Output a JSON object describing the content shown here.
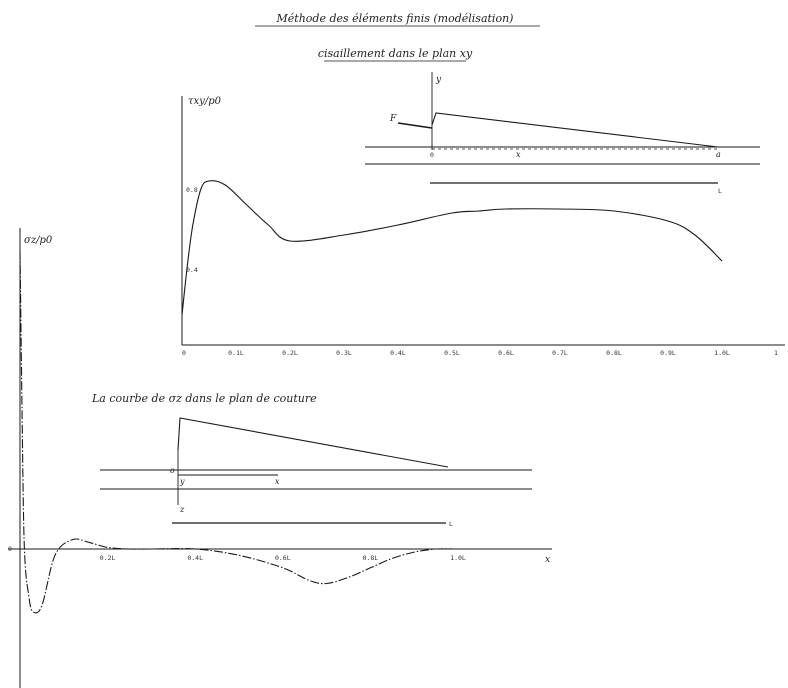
{
  "header": {
    "title": "Méthode des éléments finis (modélisation)",
    "subtitle": "cisaillement dans le plan xy"
  },
  "caption_bottom": "La courbe de σz dans le plan de couture",
  "colors": {
    "ink": "#1a1a1a",
    "background": "#ffffff"
  },
  "chart_data": [
    {
      "type": "line",
      "ylabel": "τxy/p0",
      "xlim": [
        0,
        1.1
      ],
      "ylim": [
        0,
        1.0
      ],
      "grid": false,
      "x_ticks": [
        "0",
        "0.1L",
        "0.2L",
        "0.3L",
        "0.4L",
        "0.5L",
        "0.6L",
        "0.7L",
        "0.8L",
        "0.9L",
        "1.0L",
        "1"
      ],
      "y_tick_labels": [
        "0.8",
        "0.4"
      ],
      "series": [
        {
          "x": [
            0.0,
            0.01,
            0.02,
            0.035,
            0.05,
            0.08,
            0.12,
            0.16,
            0.2,
            0.3,
            0.4,
            0.5,
            0.55,
            0.6,
            0.7,
            0.8,
            0.9,
            0.95,
            1.0
          ],
          "y": [
            0.15,
            0.4,
            0.6,
            0.78,
            0.82,
            0.8,
            0.7,
            0.6,
            0.52,
            0.55,
            0.6,
            0.66,
            0.67,
            0.68,
            0.68,
            0.67,
            0.62,
            0.55,
            0.42
          ]
        }
      ]
    },
    {
      "type": "line",
      "ylabel": "σz/p0",
      "xlabel": "x",
      "xlim": [
        0,
        1.2
      ],
      "ylim": [
        -0.3,
        1.0
      ],
      "grid": false,
      "x_ticks": [
        "0.2L",
        "0.4L",
        "0.6L",
        "0.8L",
        "1.0L"
      ],
      "y_tick_labels": [
        "0"
      ],
      "series": [
        {
          "x": [
            0.0,
            0.005,
            0.01,
            0.02,
            0.03,
            0.05,
            0.08,
            0.12,
            0.16,
            0.2,
            0.25,
            0.3,
            0.4,
            0.5,
            0.6,
            0.66,
            0.7,
            0.75,
            0.8,
            0.85,
            0.9,
            0.95,
            1.0,
            1.05,
            1.1
          ],
          "y": [
            0.95,
            0.4,
            0.0,
            -0.15,
            -0.2,
            -0.18,
            -0.02,
            0.03,
            0.02,
            0.005,
            0.0,
            0.0,
            0.0,
            -0.02,
            -0.06,
            -0.1,
            -0.11,
            -0.09,
            -0.06,
            -0.03,
            -0.01,
            0.0,
            0.0,
            0.0,
            0.0
          ]
        }
      ]
    }
  ],
  "inset_top": {
    "axis_y": "y",
    "axis_x": "x",
    "origin": "0",
    "load": "F",
    "right_label": "a",
    "length_label": "L"
  },
  "inset_bottom": {
    "origin": "o",
    "axis_y": "y",
    "axis_x": "x",
    "axis_z": "z",
    "length_label": "L"
  }
}
